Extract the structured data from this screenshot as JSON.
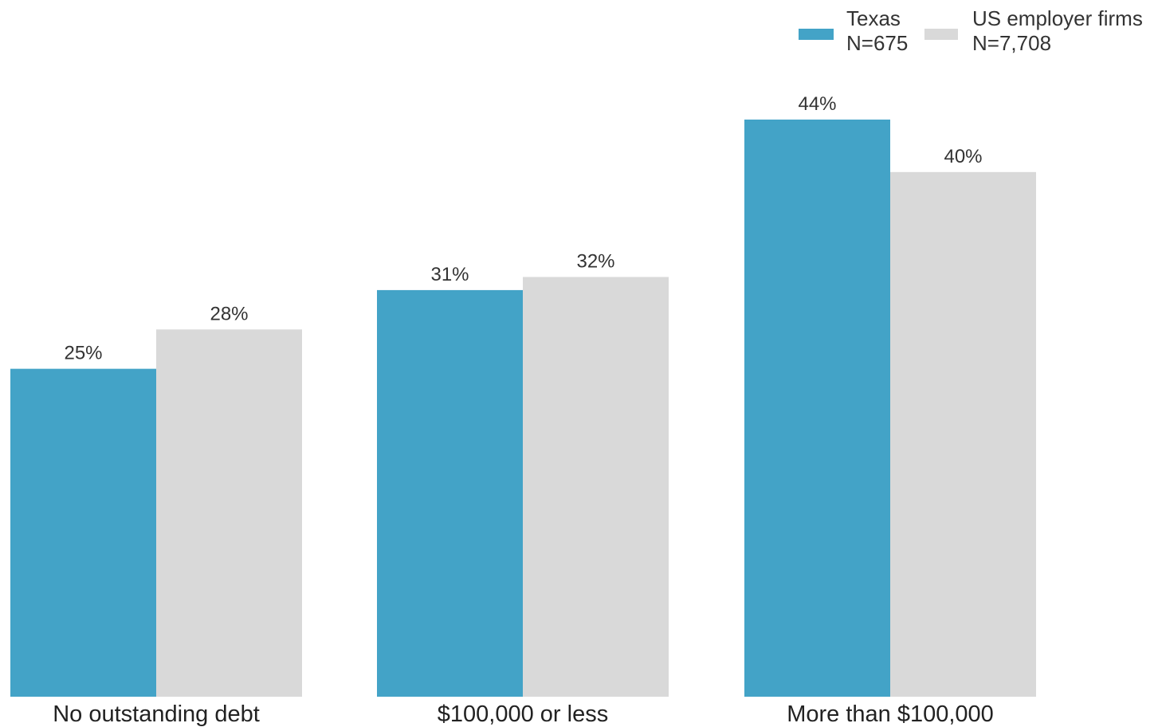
{
  "chart_data": {
    "type": "bar",
    "title": "",
    "xlabel": "",
    "ylabel": "",
    "categories": [
      "No outstanding debt",
      "$100,000 or less",
      "More than $100,000"
    ],
    "series": [
      {
        "name": "Texas",
        "sample": "N=675",
        "color": "#43a3c7",
        "values": [
          25,
          31,
          44
        ],
        "labels": [
          "25%",
          "31%",
          "44%"
        ]
      },
      {
        "name": "US employer firms",
        "sample": "N=7,708",
        "color": "#d9d9d9",
        "values": [
          28,
          32,
          40
        ],
        "labels": [
          "28%",
          "32%",
          "40%"
        ]
      }
    ],
    "ylim": [
      0,
      44
    ],
    "grid": false,
    "legend_position": "top-right"
  }
}
